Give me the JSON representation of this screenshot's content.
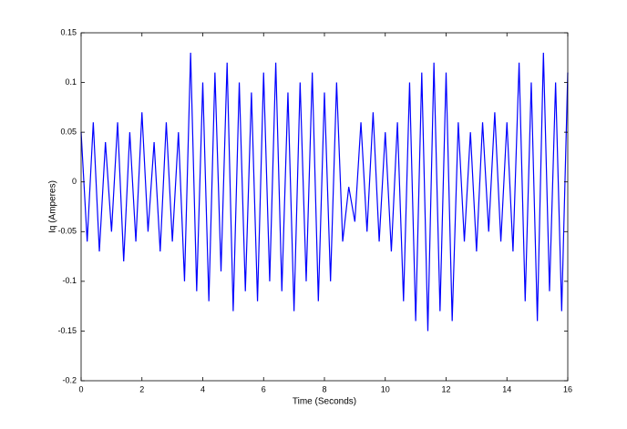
{
  "chart_data": {
    "type": "line",
    "xlabel": "Time (Seconds)",
    "ylabel": "Iq (Amperes)",
    "x": [
      0,
      0.2,
      0.4,
      0.6,
      0.8,
      1,
      1.2,
      1.4,
      1.6,
      1.8,
      2,
      2.2,
      2.4,
      2.6,
      2.8,
      3,
      3.2,
      3.4,
      3.6,
      3.8,
      4,
      4.2,
      4.4,
      4.6,
      4.8,
      5,
      5.2,
      5.4,
      5.6,
      5.8,
      6,
      6.2,
      6.4,
      6.6,
      6.8,
      7,
      7.2,
      7.4,
      7.6,
      7.8,
      8,
      8.2,
      8.4,
      8.6,
      8.8,
      9,
      9.2,
      9.4,
      9.6,
      9.8,
      10,
      10.2,
      10.4,
      10.6,
      10.8,
      11,
      11.2,
      11.4,
      11.6,
      11.8,
      12,
      12.2,
      12.4,
      12.6,
      12.8,
      13,
      13.2,
      13.4,
      13.6,
      13.8,
      14,
      14.2,
      14.4,
      14.6,
      14.8,
      15,
      15.2,
      15.4,
      15.6,
      15.8,
      16
    ],
    "series": [
      {
        "color": "#0000ff",
        "values": [
          0.05,
          -0.06,
          0.06,
          -0.07,
          0.04,
          -0.05,
          0.06,
          -0.08,
          0.05,
          -0.06,
          0.07,
          -0.05,
          0.04,
          -0.07,
          0.06,
          -0.06,
          0.05,
          -0.1,
          0.13,
          -0.11,
          0.1,
          -0.12,
          0.11,
          -0.09,
          0.12,
          -0.13,
          0.1,
          -0.11,
          0.09,
          -0.12,
          0.11,
          -0.1,
          0.12,
          -0.11,
          0.09,
          -0.13,
          0.1,
          -0.1,
          0.11,
          -0.12,
          0.09,
          -0.1,
          0.1,
          -0.06,
          -0.005,
          -0.04,
          0.06,
          -0.05,
          0.07,
          -0.06,
          0.05,
          -0.07,
          0.06,
          -0.12,
          0.1,
          -0.14,
          0.11,
          -0.15,
          0.12,
          -0.13,
          0.11,
          -0.14,
          0.06,
          -0.06,
          0.05,
          -0.07,
          0.06,
          -0.05,
          0.07,
          -0.06,
          0.06,
          -0.07,
          0.12,
          -0.12,
          0.1,
          -0.14,
          0.13,
          -0.11,
          0.1,
          -0.13,
          0.11
        ]
      }
    ],
    "xlim": [
      0,
      16
    ],
    "xticks": [
      0,
      2,
      4,
      6,
      8,
      10,
      12,
      14,
      16
    ],
    "ylim": [
      -0.2,
      0.15
    ],
    "yticks": [
      -0.2,
      -0.15,
      -0.1,
      -0.05,
      0,
      0.05,
      0.1,
      0.15
    ]
  }
}
